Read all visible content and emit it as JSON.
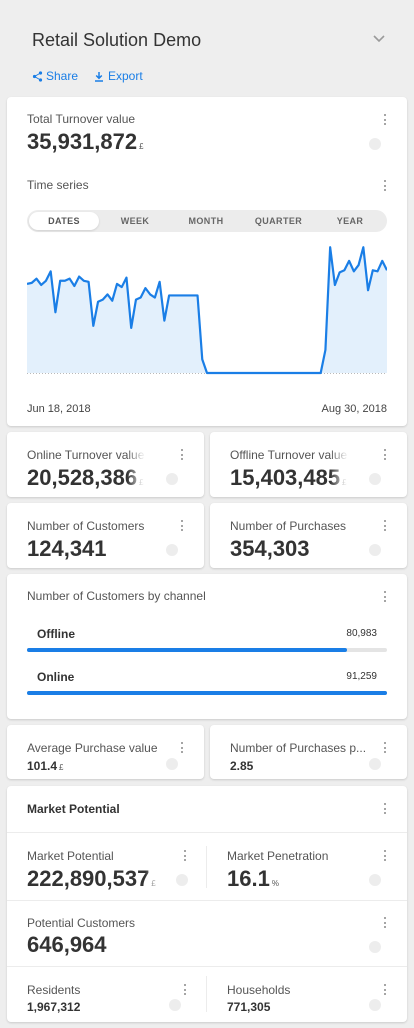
{
  "header": {
    "title": "Retail Solution Demo",
    "share_label": "Share",
    "export_label": "Export"
  },
  "total_turnover": {
    "label": "Total Turnover value",
    "value": "35,931,872",
    "unit": "£"
  },
  "time_series": {
    "label": "Time series",
    "tabs": [
      "DATES",
      "WEEK",
      "MONTH",
      "QUARTER",
      "YEAR"
    ],
    "active_tab": "DATES",
    "start_label": "Jun 18, 2018",
    "end_label": "Aug 30, 2018"
  },
  "chart_data": {
    "type": "area",
    "x_start": "Jun 18, 2018",
    "x_end": "Aug 30, 2018",
    "values": [
      0.85,
      0.86,
      0.9,
      0.84,
      0.88,
      0.97,
      0.58,
      0.88,
      0.88,
      0.9,
      0.83,
      0.92,
      0.88,
      0.87,
      0.45,
      0.68,
      0.7,
      0.75,
      0.69,
      0.85,
      0.82,
      0.91,
      0.43,
      0.7,
      0.72,
      0.81,
      0.75,
      0.72,
      0.87,
      0.5,
      0.74,
      0.74,
      0.74,
      0.74,
      0.74,
      0.74,
      0.74,
      0.13,
      0.0,
      0.0,
      0.0,
      0.0,
      0.0,
      0.0,
      0.0,
      0.0,
      0.0,
      0.0,
      0.0,
      0.0,
      0.0,
      0.0,
      0.0,
      0.0,
      0.0,
      0.0,
      0.0,
      0.0,
      0.0,
      0.0,
      0.0,
      0.0,
      0.0,
      0.22,
      1.2,
      0.84,
      0.96,
      0.98,
      1.07,
      0.97,
      1.03,
      1.2,
      0.79,
      0.98,
      0.97,
      1.07,
      0.98
    ],
    "ylim": [
      0,
      1.25
    ],
    "colors": {
      "line": "#1a7ee6",
      "fill": "#e3f0fc"
    }
  },
  "online_turnover": {
    "label": "Online Turnover value",
    "value": "20,528,386",
    "unit": "£"
  },
  "offline_turnover": {
    "label": "Offline Turnover value",
    "value": "15,403,485",
    "unit": "£"
  },
  "customers": {
    "label": "Number of Customers",
    "value": "124,341"
  },
  "purchases": {
    "label": "Number of Purchases",
    "value": "354,303"
  },
  "by_channel": {
    "label": "Number of Customers by channel",
    "rows": [
      {
        "name": "Offline",
        "value": "80,983",
        "fraction": 0.888
      },
      {
        "name": "Online",
        "value": "91,259",
        "fraction": 1.0
      }
    ]
  },
  "avg_purchase": {
    "label": "Average Purchase value",
    "value": "101.4",
    "unit": "£"
  },
  "purchases_per": {
    "label": "Number of Purchases p...",
    "value": "2.85"
  },
  "market": {
    "section_title": "Market Potential",
    "potential": {
      "label": "Market Potential",
      "value": "222,890,537",
      "unit": "£"
    },
    "penetration": {
      "label": "Market Penetration",
      "value": "16.1",
      "unit": "%"
    },
    "potential_customers": {
      "label": "Potential Customers",
      "value": "646,964"
    },
    "residents": {
      "label": "Residents",
      "value": "1,967,312"
    },
    "households": {
      "label": "Households",
      "value": "771,305"
    }
  },
  "colors": {
    "accent": "#1a7ee6",
    "background": "#eeeeee",
    "card": "#ffffff"
  }
}
